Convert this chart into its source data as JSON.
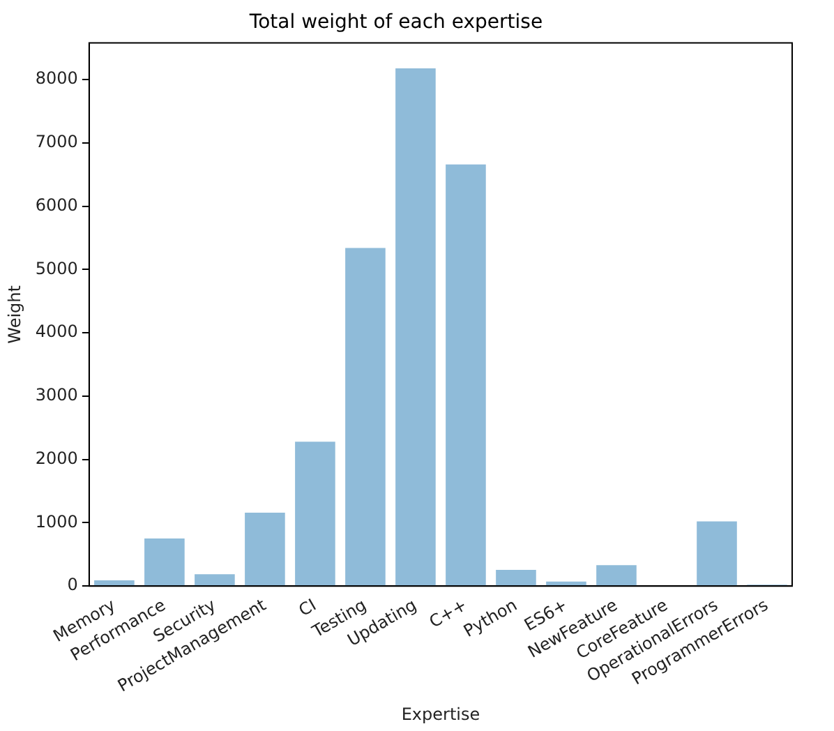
{
  "chart_data": {
    "type": "bar",
    "title": "Total weight of each expertise",
    "xlabel": "Expertise",
    "ylabel": "Weight",
    "categories": [
      "Memory",
      "Performance",
      "Security",
      "ProjectManagement",
      "CI",
      "Testing",
      "Updating",
      "C++",
      "Python",
      "ES6+",
      "NewFeature",
      "CoreFeature",
      "OperationalErrors",
      "ProgrammerErrors"
    ],
    "values": [
      90,
      750,
      185,
      1160,
      2280,
      5340,
      8180,
      6660,
      255,
      70,
      330,
      0,
      1020,
      20
    ],
    "color": "#8fbbd9",
    "ylim": [
      0,
      8580
    ],
    "yticks": [
      0,
      1000,
      2000,
      3000,
      4000,
      5000,
      6000,
      7000,
      8000
    ],
    "grid": false,
    "legend": false
  }
}
